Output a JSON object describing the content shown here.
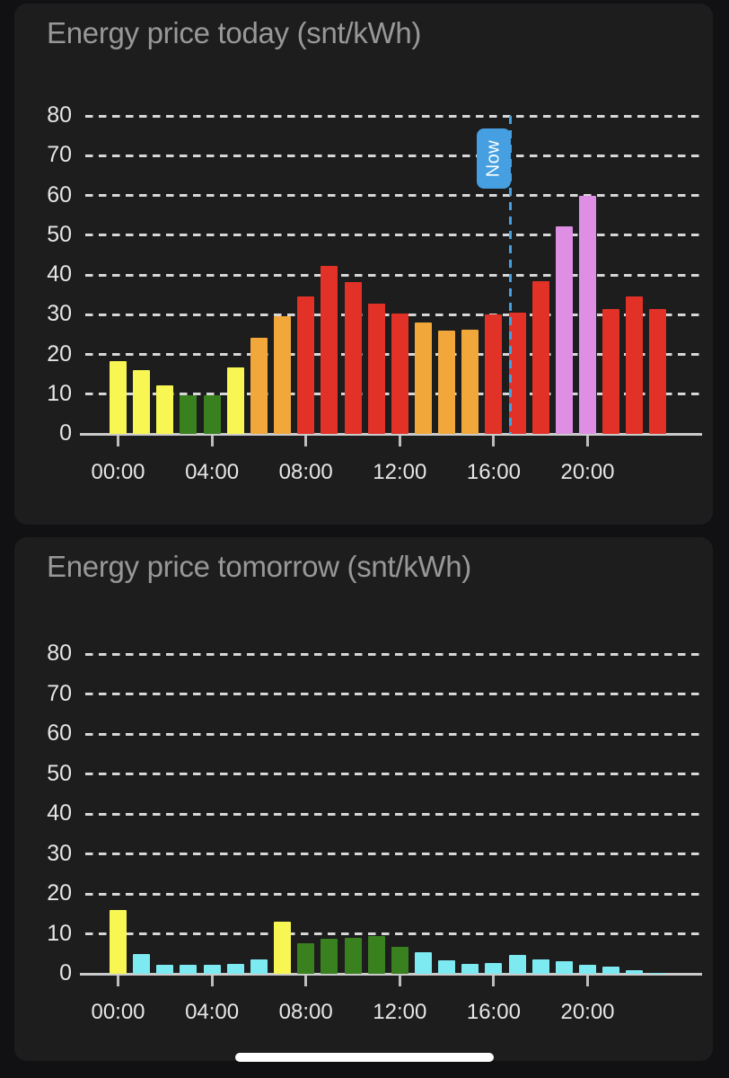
{
  "palette": {
    "yellow": "#f7f653",
    "green": "#39801f",
    "orange": "#f1a73a",
    "red": "#e23126",
    "violet": "#df8fe3",
    "cyan": "#7de9f1",
    "blue": "#459fe0"
  },
  "home_indicator": {
    "color": "#ffffff"
  },
  "chart_data": [
    {
      "type": "bar",
      "title": "Energy price today (snt/kWh)",
      "unit": "snt/kWh",
      "x": [
        "00:00",
        "01:00",
        "02:00",
        "03:00",
        "04:00",
        "05:00",
        "06:00",
        "07:00",
        "08:00",
        "09:00",
        "10:00",
        "11:00",
        "12:00",
        "13:00",
        "14:00",
        "15:00",
        "16:00",
        "17:00",
        "18:00",
        "19:00",
        "20:00",
        "21:00",
        "22:00",
        "23:00"
      ],
      "values": [
        18.4,
        16.1,
        12.1,
        9.8,
        9.8,
        16.7,
        24.1,
        29.5,
        34.6,
        42.2,
        38.2,
        32.7,
        30.2,
        28.1,
        26.1,
        26.2,
        30.0,
        30.6,
        38.4,
        52.1,
        60.0,
        31.4,
        34.5,
        31.5
      ],
      "bar_colors": [
        "yellow",
        "yellow",
        "yellow",
        "green",
        "green",
        "yellow",
        "orange",
        "orange",
        "red",
        "red",
        "red",
        "red",
        "red",
        "orange",
        "orange",
        "orange",
        "red",
        "red",
        "red",
        "violet",
        "violet",
        "red",
        "red",
        "red"
      ],
      "ylim": [
        0,
        80
      ],
      "yticks": [
        0,
        10,
        20,
        30,
        40,
        50,
        60,
        70,
        80
      ],
      "x_axis_ticks": [
        "00:00",
        "04:00",
        "08:00",
        "12:00",
        "16:00",
        "20:00"
      ],
      "grid": "horizontal-dashed",
      "legend": "none",
      "annotation": {
        "label": "Now",
        "hour": 16.72,
        "color": "#459fe0"
      }
    },
    {
      "type": "bar",
      "title": "Energy price tomorrow (snt/kWh)",
      "unit": "snt/kWh",
      "x": [
        "00:00",
        "01:00",
        "02:00",
        "03:00",
        "04:00",
        "05:00",
        "06:00",
        "07:00",
        "08:00",
        "09:00",
        "10:00",
        "11:00",
        "12:00",
        "13:00",
        "14:00",
        "15:00",
        "16:00",
        "17:00",
        "18:00",
        "19:00",
        "20:00",
        "21:00",
        "22:00",
        "23:00"
      ],
      "values": [
        16.0,
        5.0,
        2.2,
        2.2,
        2.2,
        2.4,
        3.7,
        13.0,
        7.6,
        8.8,
        9.1,
        9.5,
        6.8,
        5.4,
        3.3,
        2.4,
        2.6,
        4.8,
        3.6,
        3.2,
        2.3,
        1.7,
        0.9,
        0.3
      ],
      "bar_colors": [
        "yellow",
        "cyan",
        "cyan",
        "cyan",
        "cyan",
        "cyan",
        "cyan",
        "yellow",
        "green",
        "green",
        "green",
        "green",
        "green",
        "cyan",
        "cyan",
        "cyan",
        "cyan",
        "cyan",
        "cyan",
        "cyan",
        "cyan",
        "cyan",
        "cyan",
        "cyan"
      ],
      "ylim": [
        0,
        80
      ],
      "yticks": [
        0,
        10,
        20,
        30,
        40,
        50,
        60,
        70,
        80
      ],
      "x_axis_ticks": [
        "00:00",
        "04:00",
        "08:00",
        "12:00",
        "16:00",
        "20:00"
      ],
      "grid": "horizontal-dashed",
      "legend": "none",
      "annotation": null
    }
  ]
}
